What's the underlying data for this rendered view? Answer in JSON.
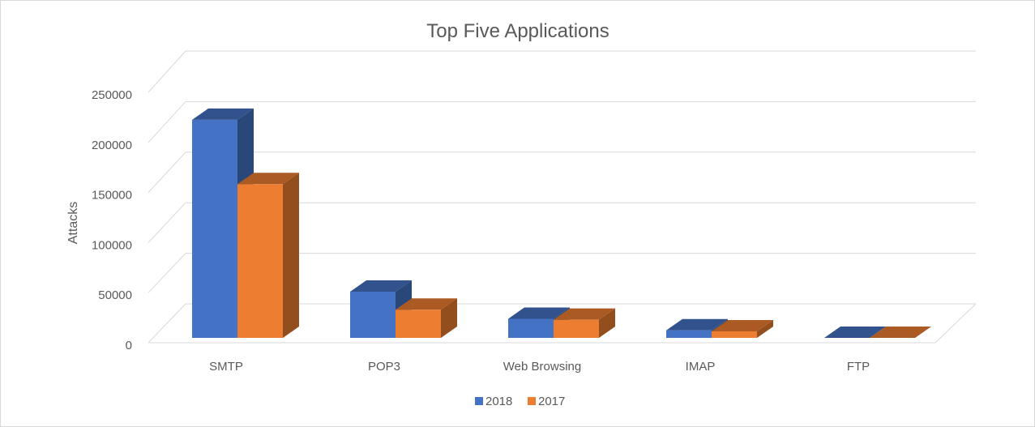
{
  "chart_data": {
    "type": "bar",
    "title": "Top Five Applications",
    "xlabel": "",
    "ylabel": "Attacks",
    "categories": [
      "SMTP",
      "POP3",
      "Web Browsing",
      "IMAP",
      "FTP"
    ],
    "series": [
      {
        "name": "2018",
        "values": [
          217000,
          46000,
          19000,
          7500,
          0
        ],
        "color": "#4472c4"
      },
      {
        "name": "2017",
        "values": [
          153000,
          28000,
          18000,
          6500,
          0
        ],
        "color": "#ed7d31"
      }
    ],
    "ylim": [
      0,
      250000
    ],
    "yticks": [
      0,
      50000,
      100000,
      150000,
      200000,
      250000
    ],
    "ytick_labels": [
      "0",
      "50000",
      "100000",
      "150000",
      "200000",
      "250000"
    ],
    "grid": true,
    "three_d": true,
    "legend_position": "bottom",
    "colors": {
      "grid": "#d9d9d9",
      "text": "#595959",
      "border": "#d9d9d9"
    }
  }
}
